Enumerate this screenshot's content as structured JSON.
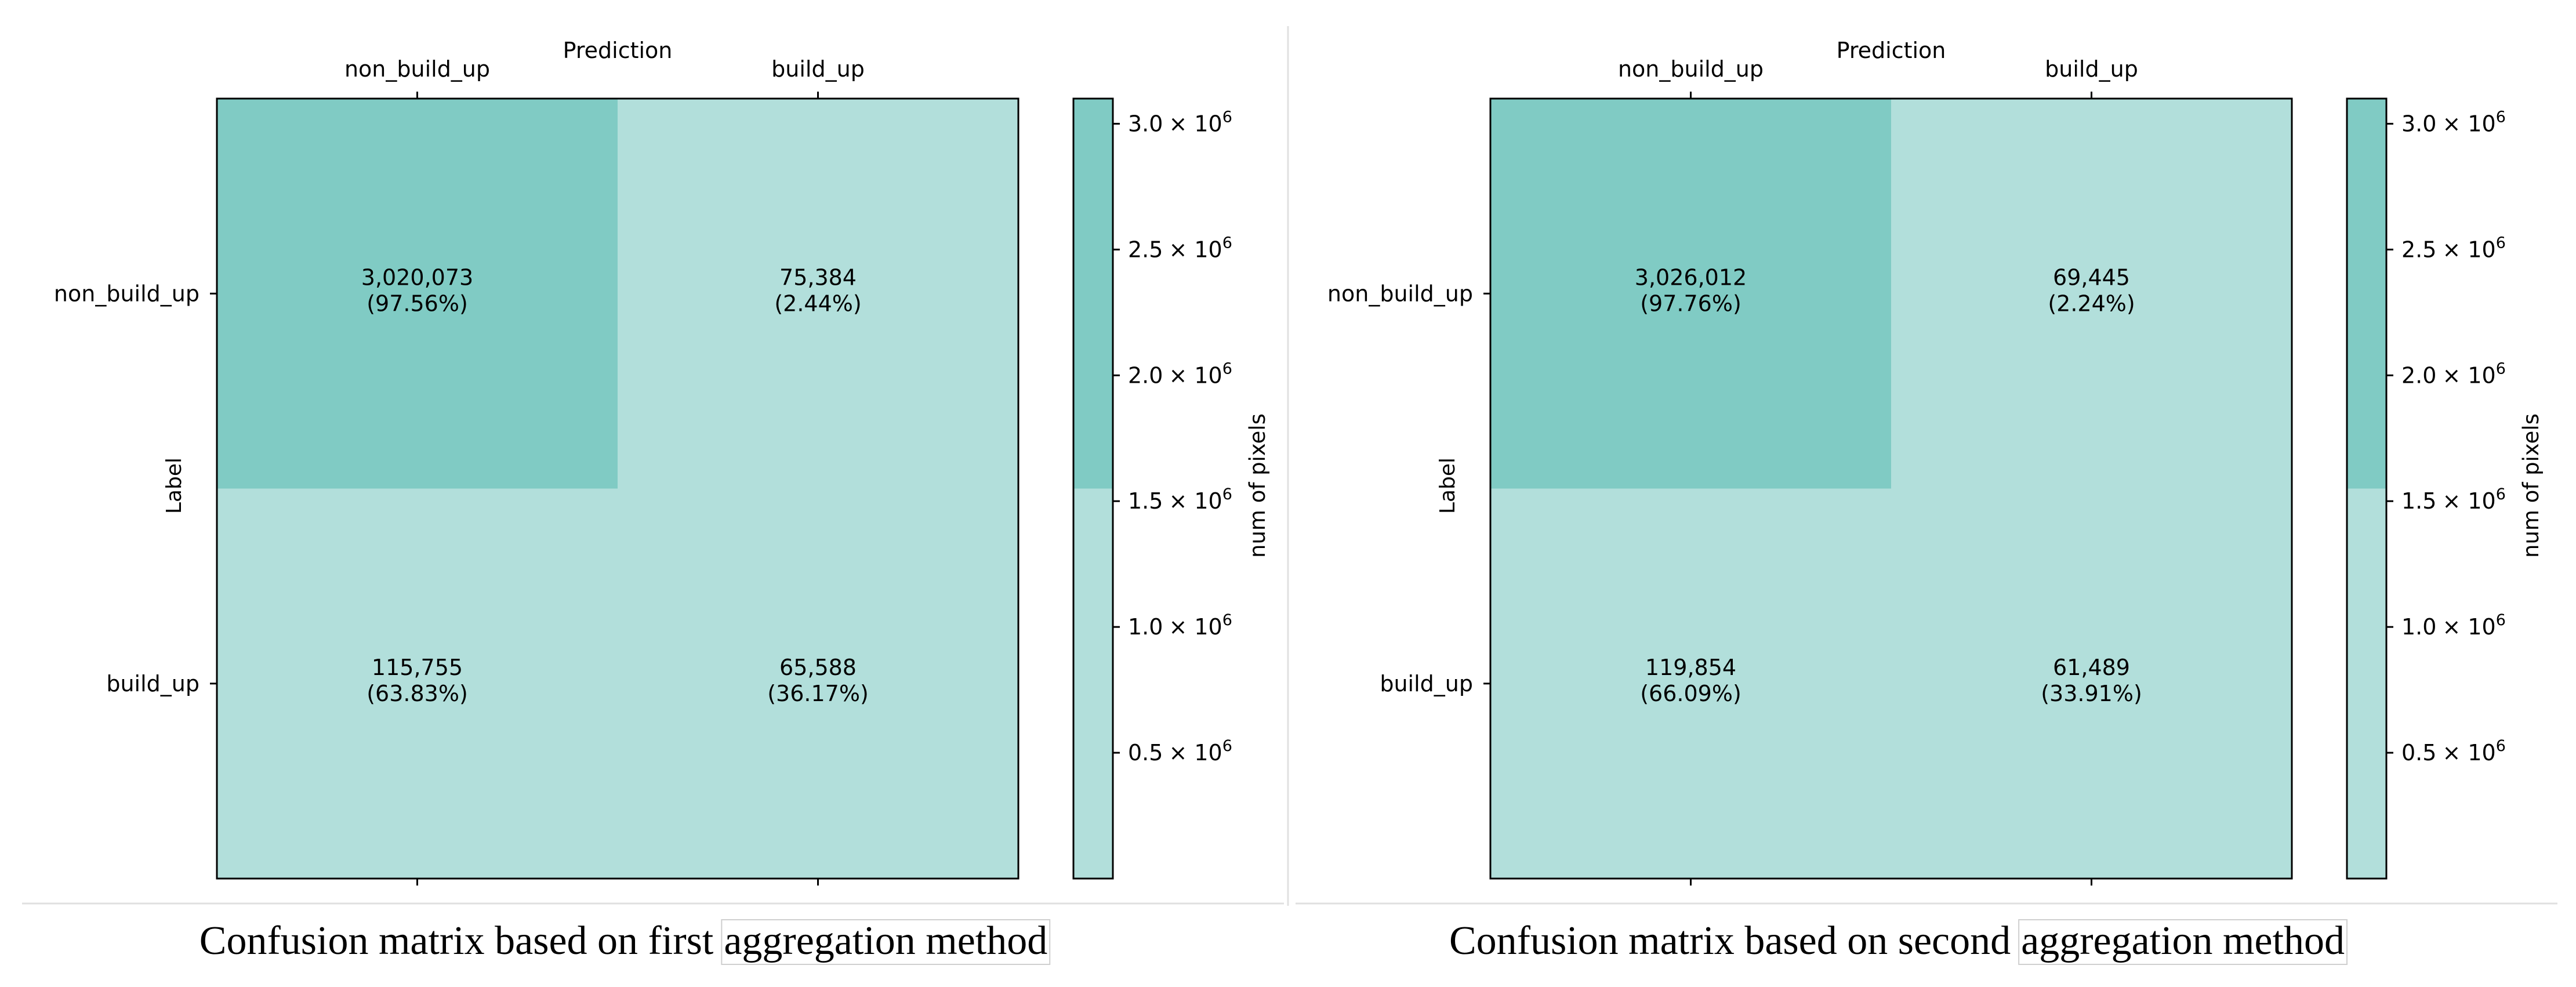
{
  "chart_data": [
    {
      "type": "heatmap",
      "title": "Prediction",
      "caption_prefix": "Confusion matrix based on first",
      "caption_highlight": "aggregation method",
      "xlabel": "Prediction",
      "ylabel": "Label",
      "x_categories": [
        "non_build_up",
        "build_up"
      ],
      "y_categories": [
        "non_build_up",
        "build_up"
      ],
      "values": [
        [
          3020073,
          75384
        ],
        [
          115755,
          65588
        ]
      ],
      "counts_text": [
        [
          "3,020,073",
          "75,384"
        ],
        [
          "115,755",
          "65,588"
        ]
      ],
      "percent_text": [
        [
          "(97.56%)",
          "(2.44%)"
        ],
        [
          "(63.83%)",
          "(36.17%)"
        ]
      ],
      "colorbar": {
        "label": "num of pixels",
        "range": [
          0,
          3100000
        ],
        "threshold": 1550000,
        "ticks": [
          500000,
          1000000,
          1500000,
          2000000,
          2500000,
          3000000
        ],
        "tick_mantissas": [
          "0.5",
          "1.0",
          "1.5",
          "2.0",
          "2.5",
          "3.0"
        ],
        "tick_base": "× 10",
        "tick_exponent": "6"
      }
    },
    {
      "type": "heatmap",
      "title": "Prediction",
      "caption_prefix": "Confusion matrix based on second",
      "caption_highlight": "aggregation method",
      "xlabel": "Prediction",
      "ylabel": "Label",
      "x_categories": [
        "non_build_up",
        "build_up"
      ],
      "y_categories": [
        "non_build_up",
        "build_up"
      ],
      "values": [
        [
          3026012,
          69445
        ],
        [
          119854,
          61489
        ]
      ],
      "counts_text": [
        [
          "3,026,012",
          "69,445"
        ],
        [
          "119,854",
          "61,489"
        ]
      ],
      "percent_text": [
        [
          "(97.76%)",
          "(2.24%)"
        ],
        [
          "(66.09%)",
          "(33.91%)"
        ]
      ],
      "colorbar": {
        "label": "num of pixels",
        "range": [
          0,
          3100000
        ],
        "threshold": 1550000,
        "ticks": [
          500000,
          1000000,
          1500000,
          2000000,
          2500000,
          3000000
        ],
        "tick_mantissas": [
          "0.5",
          "1.0",
          "1.5",
          "2.0",
          "2.5",
          "3.0"
        ],
        "tick_base": "× 10",
        "tick_exponent": "6"
      }
    }
  ],
  "colors": {
    "high": "#80cbc4",
    "low": "#b2dfdb",
    "axis": "#000000",
    "divider": "#e0e0e0",
    "caption_box": "#cfcfcf"
  }
}
